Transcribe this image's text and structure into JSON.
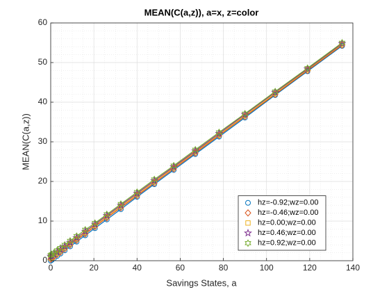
{
  "chart_data": {
    "type": "line",
    "title": "MEAN(C(a,z)), a=x, z=color",
    "xlabel": "Savings States, a",
    "ylabel": "MEAN(C(a,z))",
    "x": [
      0,
      0.5,
      1.5,
      3,
      4.5,
      6.5,
      9,
      12,
      16,
      20.5,
      26,
      32.5,
      40,
      48,
      57,
      67,
      78,
      90,
      104,
      119,
      135
    ],
    "series": [
      {
        "name": "hz=-0.92;wz=0.00",
        "color": "#0072BD",
        "marker": "circle",
        "values": [
          0,
          0.2,
          0.6,
          1.2,
          1.8,
          2.6,
          3.6,
          4.8,
          6.4,
          8.2,
          10.4,
          13.0,
          16.1,
          19.3,
          22.9,
          26.9,
          31.3,
          36.1,
          41.8,
          47.8,
          54.2
        ]
      },
      {
        "name": "hz=-0.46;wz=0.00",
        "color": "#D95319",
        "marker": "diamond",
        "values": [
          0.4,
          0.6,
          1.0,
          1.6,
          2.2,
          3.0,
          4.0,
          5.2,
          6.8,
          8.6,
          10.8,
          13.4,
          16.4,
          19.6,
          23.2,
          27.2,
          31.6,
          36.4,
          42.0,
          48.0,
          54.4
        ]
      },
      {
        "name": "hz=0.00;wz=0.00",
        "color": "#EDB120",
        "marker": "square",
        "values": [
          0.7,
          0.9,
          1.3,
          1.9,
          2.5,
          3.3,
          4.3,
          5.5,
          7.1,
          8.9,
          11.1,
          13.7,
          16.7,
          19.9,
          23.5,
          27.5,
          31.8,
          36.6,
          42.2,
          48.2,
          54.6
        ]
      },
      {
        "name": "hz=0.46;wz=0.00",
        "color": "#7E2F8E",
        "marker": "pentagram",
        "values": [
          1.1,
          1.3,
          1.6,
          2.2,
          2.8,
          3.6,
          4.6,
          5.8,
          7.4,
          9.2,
          11.4,
          14.0,
          17.0,
          20.2,
          23.7,
          27.7,
          32.1,
          36.9,
          42.5,
          48.4,
          54.8
        ]
      },
      {
        "name": "hz=0.92;wz=0.00",
        "color": "#77AC30",
        "marker": "hexagram",
        "values": [
          1.4,
          1.6,
          2.0,
          2.6,
          3.2,
          4.0,
          5.0,
          6.2,
          7.8,
          9.5,
          11.7,
          14.3,
          17.3,
          20.5,
          24.0,
          28.0,
          32.4,
          37.1,
          42.7,
          48.6,
          55.0
        ]
      }
    ],
    "xlim": [
      0,
      140
    ],
    "xticks": [
      0,
      20,
      40,
      60,
      80,
      100,
      120,
      140
    ],
    "ylim": [
      0,
      60
    ],
    "yticks": [
      0,
      10,
      20,
      30,
      40,
      50,
      60
    ],
    "grid": true,
    "minor_grid": true,
    "legend": "southeast"
  }
}
